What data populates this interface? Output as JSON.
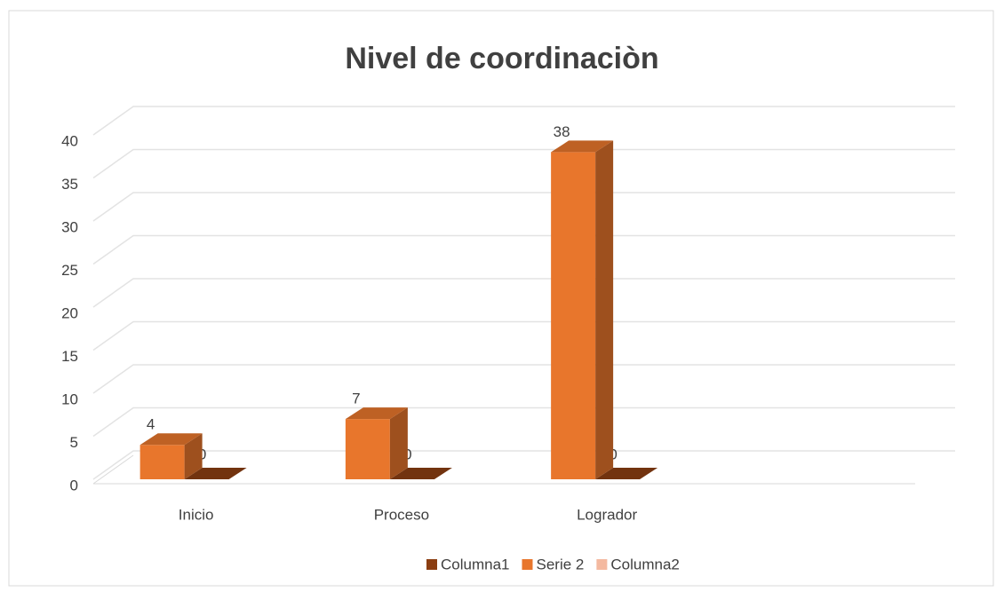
{
  "chart_data": {
    "type": "bar3d",
    "title": "Nivel de coordinaciòn",
    "categories": [
      "Inicio",
      "Proceso",
      "Logrador",
      null
    ],
    "series": [
      {
        "name": "Columna1",
        "color": "#8b3e12",
        "values": [
          0,
          0,
          0,
          null
        ]
      },
      {
        "name": "Serie 2",
        "color": "#e8762c",
        "values": [
          4,
          7,
          38,
          null
        ]
      },
      {
        "name": "Columna2",
        "color": "#f4b9a0",
        "values": [
          null,
          null,
          null,
          null
        ]
      }
    ],
    "ylim": [
      0,
      40
    ],
    "yticks": [
      0,
      5,
      10,
      15,
      20,
      25,
      30,
      35,
      40
    ],
    "grid": true,
    "legend": "bottom"
  }
}
